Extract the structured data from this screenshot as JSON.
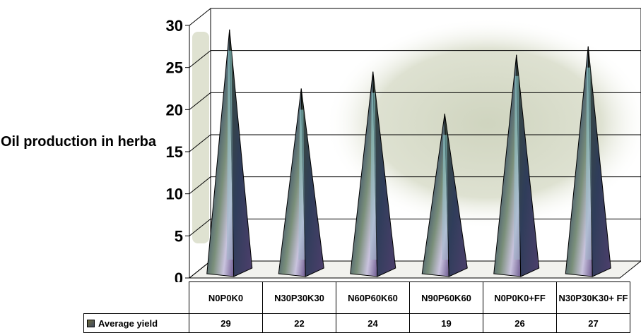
{
  "chart_data": {
    "type": "bar",
    "bar_shape": "pyramid",
    "ylabel": "Oil production in herba",
    "ylim": [
      0,
      30
    ],
    "yticks": [
      0,
      5,
      10,
      15,
      20,
      25,
      30
    ],
    "grid": true,
    "categories": [
      "N0P0K0",
      "N30P30K30",
      "N60P60K60",
      "N90P60K60",
      "N0P0K0+FF",
      "N30P30K30+ FF"
    ],
    "series": [
      {
        "name": "Average yield",
        "values": [
          29,
          22,
          24,
          19,
          26,
          27
        ]
      }
    ],
    "data_labels": [
      "29",
      "22",
      "24",
      "19",
      "26",
      "27"
    ],
    "legend_placement": "data-table"
  }
}
